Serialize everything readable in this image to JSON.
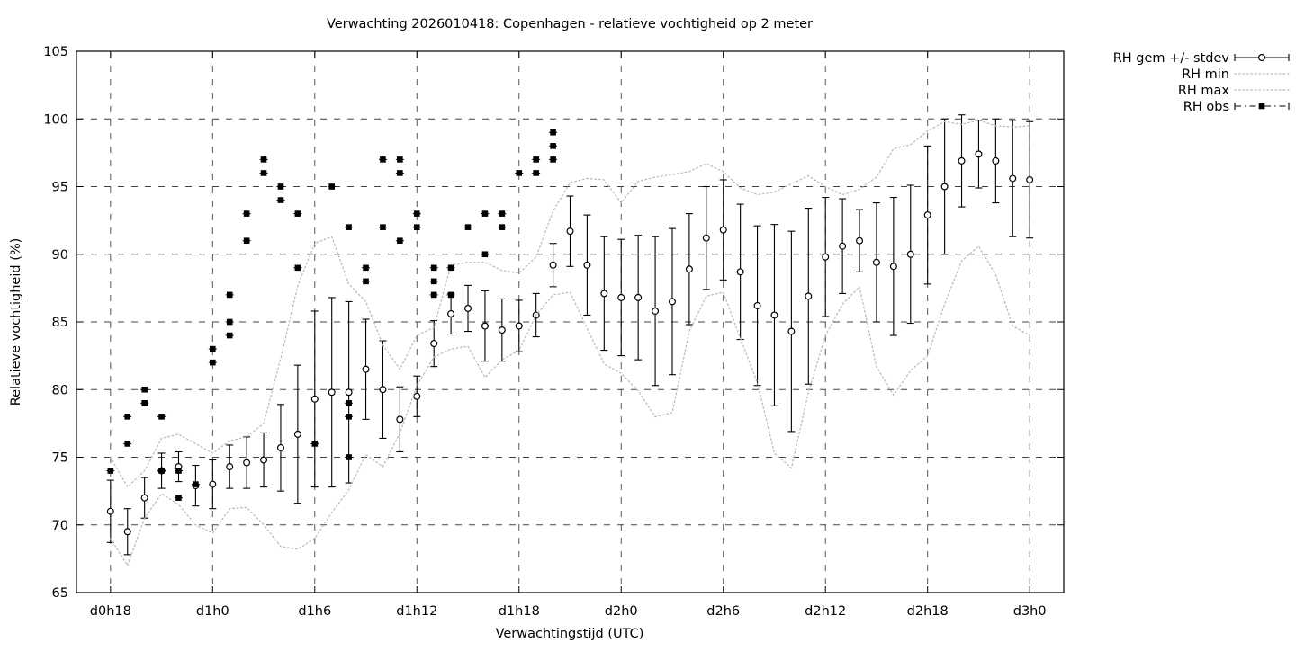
{
  "chart_data": {
    "type": "scatter",
    "title": "Verwachting 2026010418: Copenhagen - relatieve vochtigheid op 2 meter",
    "xlabel": "Verwachtingstijd (UTC)",
    "ylabel": "Relatieve vochtigheid (%)",
    "ylim": [
      65,
      105
    ],
    "y_ticks": [
      65,
      70,
      75,
      80,
      85,
      90,
      95,
      100,
      105
    ],
    "x_ticks": [
      {
        "t": 0,
        "label": "d0h18"
      },
      {
        "t": 6,
        "label": "d1h0"
      },
      {
        "t": 12,
        "label": "d1h6"
      },
      {
        "t": 18,
        "label": "d1h12"
      },
      {
        "t": 24,
        "label": "d1h18"
      },
      {
        "t": 30,
        "label": "d2h0"
      },
      {
        "t": 36,
        "label": "d2h6"
      },
      {
        "t": 42,
        "label": "d2h12"
      },
      {
        "t": 48,
        "label": "d2h18"
      },
      {
        "t": 54,
        "label": "d3h0"
      }
    ],
    "xlim_t": [
      -2,
      56
    ],
    "grid": true,
    "legend_position": "outside-top-right",
    "colors": {
      "series": "#000000",
      "minmax": "#bcbcbc",
      "grid": "#444444"
    },
    "series": [
      {
        "name": "RH gem +/- stdev",
        "style": "errorbars-with-circles",
        "color": "#000000",
        "t": [
          0,
          1,
          2,
          3,
          4,
          5,
          6,
          7,
          8,
          9,
          10,
          11,
          12,
          13,
          14,
          15,
          16,
          17,
          18,
          19,
          20,
          21,
          22,
          23,
          24,
          25,
          26,
          27,
          28,
          29,
          30,
          31,
          32,
          33,
          34,
          35,
          36,
          37,
          38,
          39,
          40,
          41,
          42,
          43,
          44,
          45,
          46,
          47,
          48,
          49,
          50,
          51,
          52,
          53,
          54
        ],
        "mean": [
          71.0,
          69.5,
          72.0,
          74.0,
          74.3,
          72.9,
          73.0,
          74.3,
          74.6,
          74.8,
          75.7,
          76.7,
          79.3,
          79.8,
          79.8,
          81.5,
          80.0,
          77.8,
          79.5,
          83.4,
          85.6,
          86.0,
          84.7,
          84.4,
          84.7,
          85.5,
          89.2,
          91.7,
          89.2,
          87.1,
          86.8,
          86.8,
          85.8,
          86.5,
          88.9,
          91.2,
          91.8,
          88.7,
          86.2,
          85.5,
          84.3,
          86.9,
          89.8,
          90.6,
          91.0,
          89.4,
          89.1,
          90.0,
          92.9,
          95.0,
          96.9,
          97.4,
          96.9,
          95.6,
          95.5
        ],
        "stdev": [
          2.3,
          1.7,
          1.5,
          1.3,
          1.1,
          1.5,
          1.8,
          1.6,
          1.9,
          2.0,
          3.2,
          5.1,
          6.5,
          7.0,
          6.7,
          3.7,
          3.6,
          2.4,
          1.5,
          1.7,
          1.5,
          1.7,
          2.6,
          2.3,
          1.9,
          1.6,
          1.6,
          2.6,
          3.7,
          4.2,
          4.3,
          4.6,
          5.5,
          5.4,
          4.1,
          3.8,
          3.7,
          5.0,
          5.9,
          6.7,
          7.4,
          6.5,
          4.4,
          3.5,
          2.3,
          4.4,
          5.1,
          5.1,
          5.1,
          5.0,
          3.4,
          2.5,
          3.1,
          4.3,
          4.3
        ]
      },
      {
        "name": "RH min",
        "style": "dotted",
        "color": "#bcbcbc",
        "t": [
          0,
          1,
          2,
          3,
          4,
          5,
          6,
          7,
          8,
          9,
          10,
          11,
          12,
          13,
          14,
          15,
          16,
          17,
          18,
          19,
          20,
          21,
          22,
          23,
          24,
          25,
          26,
          27,
          28,
          29,
          30,
          31,
          32,
          33,
          34,
          35,
          36,
          37,
          38,
          39,
          40,
          41,
          42,
          43,
          44,
          45,
          46,
          47,
          48,
          49,
          50,
          51,
          52,
          53,
          54
        ],
        "values": [
          69.0,
          67.0,
          70.5,
          72.3,
          71.5,
          70.0,
          69.4,
          71.2,
          71.3,
          70.0,
          68.4,
          68.2,
          69.0,
          70.9,
          72.6,
          75.2,
          74.3,
          76.8,
          80.3,
          82.4,
          83.0,
          83.2,
          80.9,
          82.2,
          82.9,
          85.5,
          87.0,
          87.2,
          84.5,
          81.9,
          81.2,
          79.9,
          78.0,
          78.3,
          84.3,
          86.9,
          87.2,
          83.8,
          80.5,
          75.3,
          74.2,
          79.8,
          84.0,
          86.3,
          87.6,
          81.7,
          79.6,
          81.4,
          82.5,
          86.3,
          89.5,
          90.6,
          88.5,
          84.7,
          84.0
        ]
      },
      {
        "name": "RH max",
        "style": "dotted",
        "color": "#bcbcbc",
        "t": [
          0,
          1,
          2,
          3,
          4,
          5,
          6,
          7,
          8,
          9,
          10,
          11,
          12,
          13,
          14,
          15,
          16,
          17,
          18,
          19,
          20,
          21,
          22,
          23,
          24,
          25,
          26,
          27,
          28,
          29,
          30,
          31,
          32,
          33,
          34,
          35,
          36,
          37,
          38,
          39,
          40,
          41,
          42,
          43,
          44,
          45,
          46,
          47,
          48,
          49,
          50,
          51,
          52,
          53,
          54
        ],
        "values": [
          75.0,
          72.8,
          74.0,
          76.4,
          76.7,
          76.0,
          75.3,
          76.2,
          76.5,
          77.5,
          82.3,
          87.7,
          90.8,
          91.3,
          87.8,
          86.5,
          83.3,
          81.5,
          84.0,
          84.6,
          89.2,
          89.4,
          89.4,
          88.8,
          88.6,
          89.8,
          93.2,
          95.3,
          95.6,
          95.5,
          93.8,
          95.4,
          95.7,
          95.9,
          96.1,
          96.7,
          96.1,
          94.9,
          94.4,
          94.6,
          95.2,
          95.8,
          95.0,
          94.4,
          94.8,
          95.7,
          97.8,
          98.1,
          99.1,
          99.8,
          99.6,
          99.9,
          99.5,
          99.4,
          99.5
        ]
      },
      {
        "name": "RH obs",
        "style": "filled-squares",
        "color": "#000000",
        "points": [
          [
            0,
            74
          ],
          [
            1,
            78
          ],
          [
            1,
            76
          ],
          [
            2,
            80
          ],
          [
            2,
            79
          ],
          [
            3,
            78
          ],
          [
            3,
            74
          ],
          [
            4,
            74
          ],
          [
            4,
            72
          ],
          [
            5,
            73
          ],
          [
            6,
            83
          ],
          [
            6,
            82
          ],
          [
            7,
            87
          ],
          [
            7,
            85
          ],
          [
            7,
            84
          ],
          [
            8,
            93
          ],
          [
            8,
            91
          ],
          [
            9,
            97
          ],
          [
            9,
            96
          ],
          [
            10,
            95
          ],
          [
            10,
            94
          ],
          [
            11,
            93
          ],
          [
            11,
            89
          ],
          [
            12,
            76
          ],
          [
            13,
            95
          ],
          [
            14,
            92
          ],
          [
            14,
            79
          ],
          [
            14,
            78
          ],
          [
            14,
            75
          ],
          [
            15,
            89
          ],
          [
            15,
            88
          ],
          [
            16,
            97
          ],
          [
            16,
            92
          ],
          [
            17,
            97
          ],
          [
            17,
            96
          ],
          [
            17,
            91
          ],
          [
            18,
            93
          ],
          [
            18,
            92
          ],
          [
            19,
            89
          ],
          [
            19,
            88
          ],
          [
            19,
            87
          ],
          [
            20,
            89
          ],
          [
            20,
            87
          ],
          [
            21,
            92
          ],
          [
            22,
            93
          ],
          [
            22,
            90
          ],
          [
            23,
            93
          ],
          [
            23,
            92
          ],
          [
            24,
            96
          ],
          [
            25,
            97
          ],
          [
            25,
            96
          ],
          [
            26,
            99
          ],
          [
            26,
            98
          ],
          [
            26,
            97
          ]
        ]
      }
    ]
  }
}
